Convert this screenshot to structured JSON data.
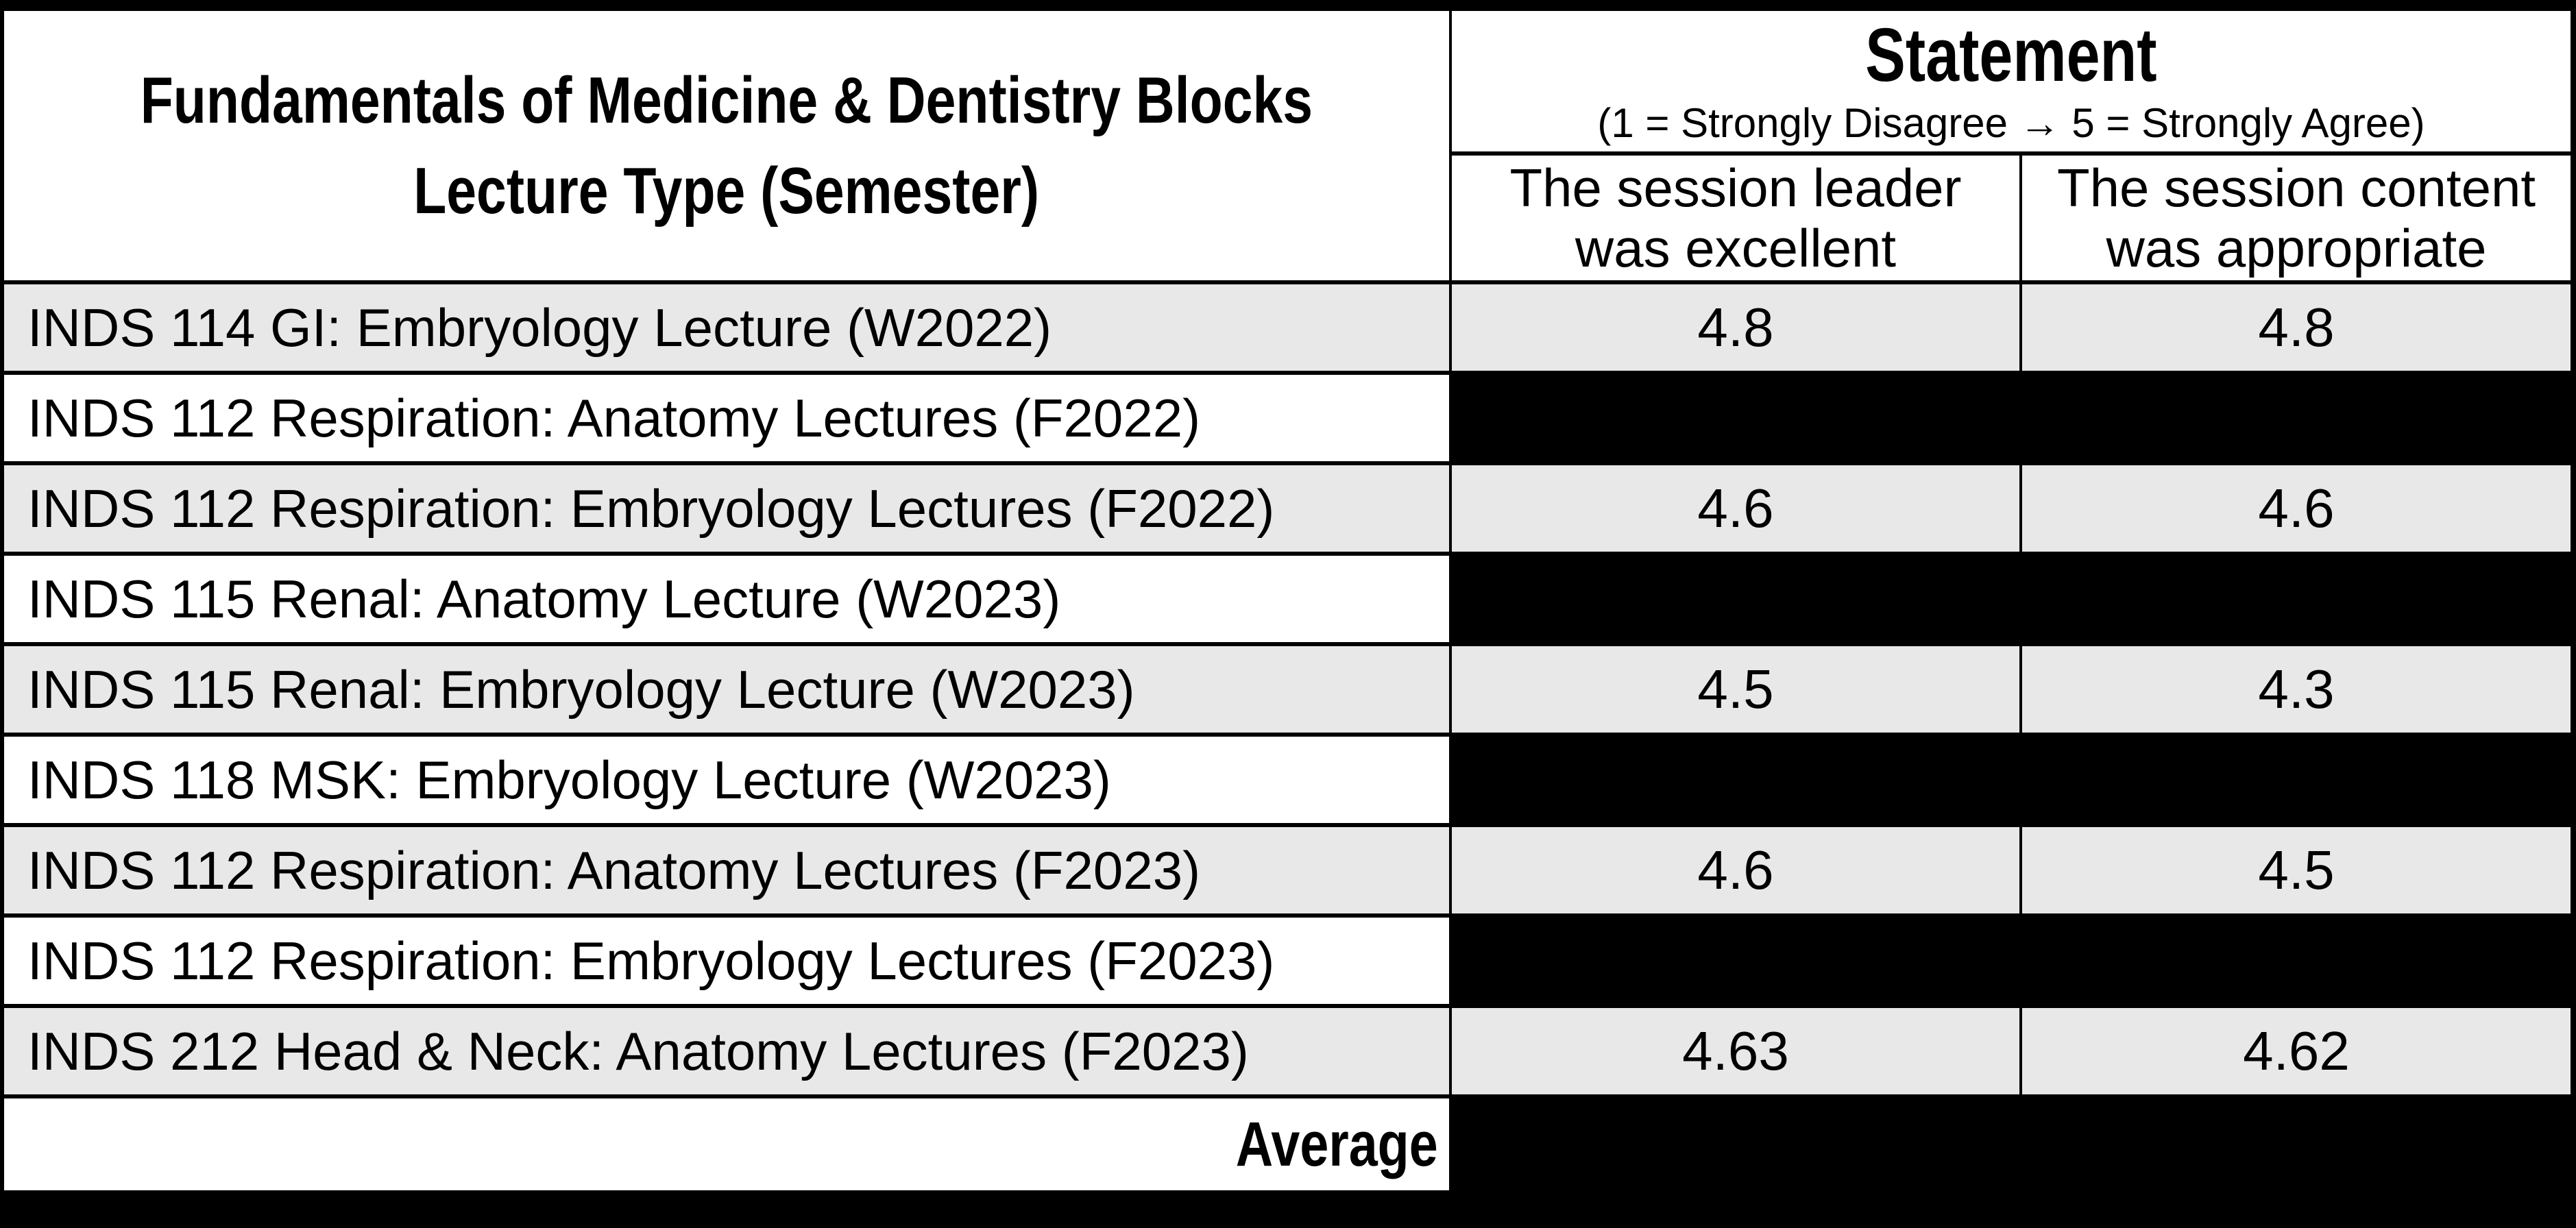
{
  "table": {
    "header": {
      "column_title_line1": "Fundamentals of Medicine & Dentistry Blocks",
      "column_title_line2": "Lecture Type (Semester)",
      "statement_title": "Statement",
      "statement_scale_note": "(1 = Strongly Disagree → 5 = Strongly Agree)",
      "subcolumns": [
        {
          "line1": "The session leader",
          "line2": "was excellent"
        },
        {
          "line1": "The session content",
          "line2": "was appropriate"
        }
      ]
    },
    "rows": [
      {
        "label": "INDS 114 GI: Embryology Lecture (W2022)",
        "leader": "4.8",
        "content": "4.8"
      },
      {
        "label": "INDS 112 Respiration: Anatomy Lectures (F2022)",
        "leader": null,
        "content": null
      },
      {
        "label": "INDS 112 Respiration: Embryology Lectures (F2022)",
        "leader": "4.6",
        "content": "4.6"
      },
      {
        "label": "INDS 115 Renal: Anatomy Lecture (W2023)",
        "leader": null,
        "content": null
      },
      {
        "label": "INDS 115 Renal: Embryology Lecture (W2023)",
        "leader": "4.5",
        "content": "4.3"
      },
      {
        "label": "INDS 118 MSK: Embryology Lecture (W2023)",
        "leader": null,
        "content": null
      },
      {
        "label": "INDS 112 Respiration: Anatomy Lectures (F2023)",
        "leader": "4.6",
        "content": "4.5"
      },
      {
        "label": "INDS 112 Respiration: Embryology Lectures (F2023)",
        "leader": null,
        "content": null
      },
      {
        "label": "INDS 212 Head & Neck: Anatomy Lectures (F2023)",
        "leader": "4.63",
        "content": "4.62"
      }
    ],
    "footer": {
      "label": "Average",
      "leader": null,
      "content": null
    }
  },
  "colors": {
    "shaded_row": "#e8e8e8",
    "cell_background": "#ffffff",
    "redaction": "#000000",
    "border": "#000000",
    "page_background": "#000000"
  }
}
